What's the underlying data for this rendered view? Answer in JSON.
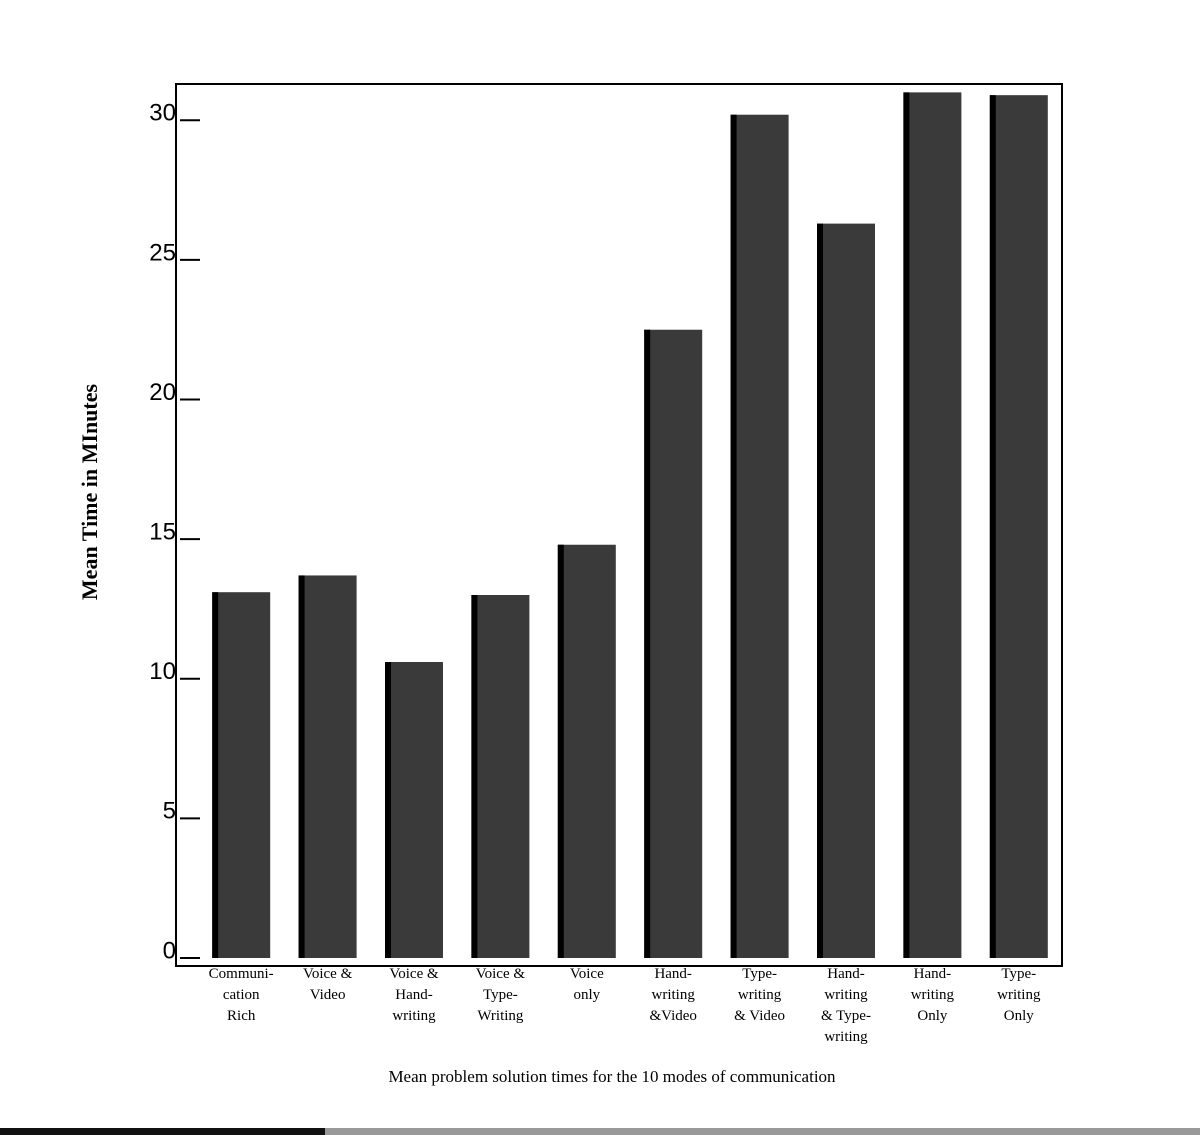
{
  "chart_data": {
    "type": "bar",
    "title": "Mean problem solution times for the 10 modes of communication",
    "y_label": "Mean Time in MInutes",
    "categories": [
      "Communi-\ncation\nRich",
      "Voice &\nVideo",
      "Voice &\nHand-\nwriting",
      "Voice &\nType-\nWriting",
      "Voice\nonly",
      "Hand-\nwriting\n&Video",
      "Type-\nwriting\n& Video",
      "Hand-\nwriting\n& Type-\nwriting",
      "Hand-\nwriting\nOnly",
      "Type-\nwriting\nOnly"
    ],
    "values": [
      13.1,
      13.7,
      10.6,
      13.0,
      14.8,
      22.5,
      30.2,
      26.3,
      31.0,
      30.9
    ],
    "color": "#3a3a3a",
    "ylim": [
      0,
      31.3
    ],
    "yticks": [
      0,
      5,
      10,
      15,
      20,
      25,
      30
    ],
    "grid": false
  }
}
